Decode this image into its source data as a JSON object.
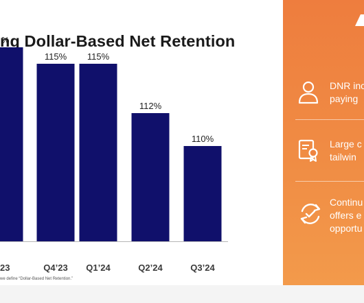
{
  "slide": {
    "title": "ng Dollar-Based Net Retention",
    "footnote": "we define “Dollar-Based Net Retention.”"
  },
  "chart_data": {
    "type": "bar",
    "categories": [
      "23",
      "Q4’23",
      "Q1’24",
      "Q2’24",
      "Q3’24"
    ],
    "values": [
      116,
      115,
      115,
      112,
      110
    ],
    "data_labels": [
      "%",
      "115%",
      "115%",
      "112%",
      "110%"
    ],
    "bar_color": "#10106b",
    "grid": false,
    "legend": "none"
  },
  "panel": {
    "background": "#ef8440",
    "items": [
      {
        "icon": "person-icon",
        "lines": [
          "DNR inc",
          "paying"
        ]
      },
      {
        "icon": "certificate-icon",
        "lines": [
          "Large c",
          "tailwin"
        ]
      },
      {
        "icon": "refresh-check-icon",
        "lines": [
          "Continu",
          "offers e",
          "opportu"
        ]
      }
    ]
  }
}
